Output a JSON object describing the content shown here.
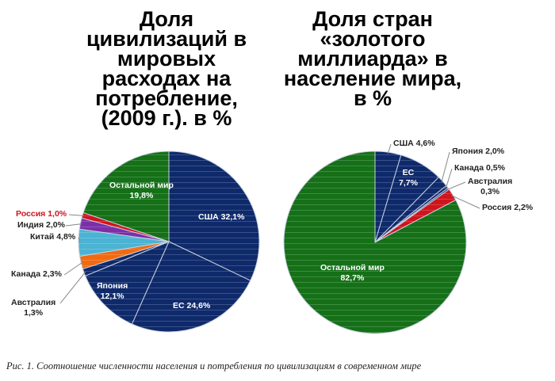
{
  "chart_data": [
    {
      "type": "pie",
      "title": "Доля цивилизаций в мировых расходах на потребление, (2009 г.). в %",
      "title_lines": [
        "Доля",
        "цивилизаций в",
        "мировых",
        "расходах на",
        "потребление,",
        "(2009 г.). в %"
      ],
      "slices": [
        {
          "name": "США",
          "value": 32.1,
          "label": "США 32,1%",
          "color": "#0f2a6b"
        },
        {
          "name": "ЕС",
          "value": 24.6,
          "label": "ЕС 24,6%",
          "color": "#0f2a6b"
        },
        {
          "name": "Япония",
          "value": 12.1,
          "label": "Япония 12,1%",
          "color": "#0f2a6b"
        },
        {
          "name": "Австралия",
          "value": 1.3,
          "label": "Австралия 1,3%",
          "color": "#0f2a6b"
        },
        {
          "name": "Канада",
          "value": 2.3,
          "label": "Канада 2,3%",
          "color": "#f26a10"
        },
        {
          "name": "Китай",
          "value": 4.8,
          "label": "Китай 4,8%",
          "color": "#4bb3d3"
        },
        {
          "name": "Индия",
          "value": 2.0,
          "label": "Индия 2,0%",
          "color": "#7a2fa8"
        },
        {
          "name": "Россия",
          "value": 1.0,
          "label": "Россия 1,0%",
          "color": "#d0141c"
        },
        {
          "name": "Остальной мир",
          "value": 19.8,
          "label": "Остальной мир 19,8%",
          "color": "#157018"
        }
      ]
    },
    {
      "type": "pie",
      "title": "Доля стран «золотого миллиарда» в население мира, в %",
      "title_lines": [
        "Доля стран",
        "«золотого",
        "миллиарда» в",
        "население мира,",
        "в %"
      ],
      "slices": [
        {
          "name": "США",
          "value": 4.6,
          "label": "США 4,6%",
          "color": "#0f2a6b"
        },
        {
          "name": "ЕС",
          "value": 7.7,
          "label": "ЕС 7,7%",
          "color": "#0f2a6b"
        },
        {
          "name": "Япония",
          "value": 2.0,
          "label": "Япония 2,0%",
          "color": "#0f2a6b"
        },
        {
          "name": "Канада",
          "value": 0.5,
          "label": "Канада 0,5%",
          "color": "#0f2a6b"
        },
        {
          "name": "Австралия",
          "value": 0.3,
          "label": "Австралия 0,3%",
          "color": "#0f2a6b"
        },
        {
          "name": "Россия",
          "value": 2.2,
          "label": "Россия 2,2%",
          "color": "#d0141c"
        },
        {
          "name": "Остальной мир",
          "value": 82.7,
          "label": "Остальной мир 82,7%",
          "color": "#157018"
        }
      ]
    }
  ],
  "caption": "Рис. 1. Соотношение численности населения и потребления по цивилизациям в современном мире"
}
